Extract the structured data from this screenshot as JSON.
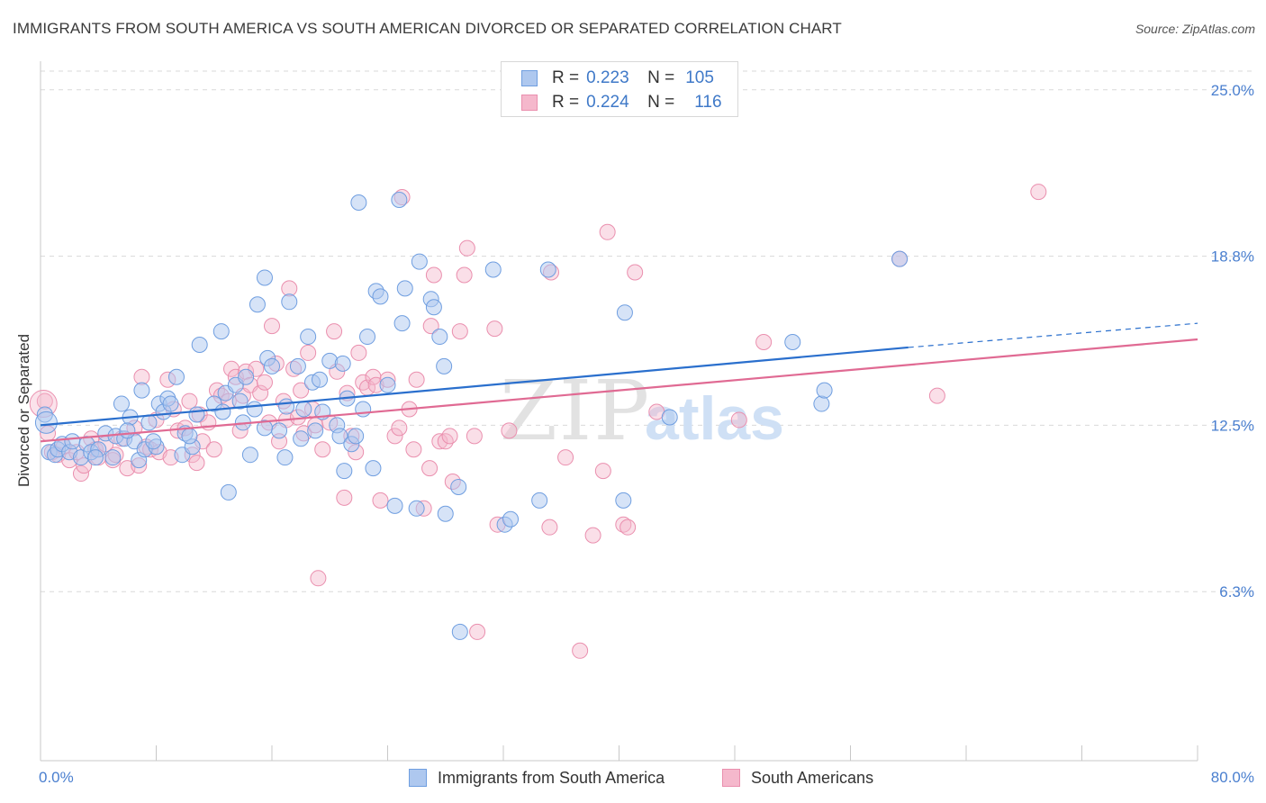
{
  "title": "IMMIGRANTS FROM SOUTH AMERICA VS SOUTH AMERICAN DIVORCED OR SEPARATED CORRELATION CHART",
  "source": "Source: ZipAtlas.com",
  "watermark": {
    "zip": "ZIP",
    "atlas": "atlas"
  },
  "legend_top": [
    {
      "r_label": "R =",
      "r_value": "0.223",
      "n_label": "N =",
      "n_value": "105"
    },
    {
      "r_label": "R =",
      "r_value": "0.224",
      "n_label": "N =",
      "n_value": "116"
    }
  ],
  "legend_bottom": [
    "Immigrants from South America",
    "South Americans"
  ],
  "colors": {
    "blue_fill": "#aec8ef",
    "blue_stroke": "#6f9ee0",
    "blue_line": "#2a6fcd",
    "pink_fill": "#f5b8cc",
    "pink_stroke": "#ea8fae",
    "pink_line": "#e06a93",
    "axis_label": "#4a7fcf",
    "grid": "#d9d9d9"
  },
  "chart_data": {
    "type": "scatter",
    "title": "IMMIGRANTS FROM SOUTH AMERICA VS SOUTH AMERICAN DIVORCED OR SEPARATED CORRELATION CHART",
    "xlabel": "",
    "ylabel": "Divorced or Separated",
    "xlim": [
      0,
      80
    ],
    "ylim": [
      0,
      26
    ],
    "x_tick_labels": [
      "0.0%",
      "80.0%"
    ],
    "y_ticks": [
      6.3,
      12.5,
      18.8,
      25.0
    ],
    "y_tick_labels": [
      "6.3%",
      "12.5%",
      "18.8%",
      "25.0%"
    ],
    "grid": true,
    "legend_position": "top-center",
    "series": [
      {
        "name": "Immigrants from South America",
        "color": "#aec8ef",
        "trend": {
          "x0": 0,
          "y0": 12.5,
          "x1": 60,
          "y1": 15.4,
          "dash_x1": 80,
          "dash_y1": 16.3
        },
        "points": [
          [
            0.3,
            12.9
          ],
          [
            0.6,
            11.5
          ],
          [
            1.0,
            11.4
          ],
          [
            1.2,
            11.6
          ],
          [
            1.5,
            11.8
          ],
          [
            2.0,
            11.5
          ],
          [
            2.2,
            11.9
          ],
          [
            2.8,
            11.3
          ],
          [
            3.2,
            11.8
          ],
          [
            3.5,
            11.5
          ],
          [
            4.0,
            11.6
          ],
          [
            4.5,
            12.2
          ],
          [
            5.0,
            11.3
          ],
          [
            5.2,
            12.1
          ],
          [
            5.6,
            13.3
          ],
          [
            5.8,
            12.0
          ],
          [
            6.2,
            12.8
          ],
          [
            6.5,
            11.9
          ],
          [
            6.8,
            11.2
          ],
          [
            7.0,
            13.8
          ],
          [
            7.5,
            12.6
          ],
          [
            7.2,
            11.6
          ],
          [
            8.0,
            11.7
          ],
          [
            8.2,
            13.3
          ],
          [
            8.5,
            13.0
          ],
          [
            8.8,
            13.5
          ],
          [
            9.0,
            13.3
          ],
          [
            9.4,
            14.3
          ],
          [
            9.8,
            11.4
          ],
          [
            10.0,
            12.2
          ],
          [
            10.5,
            11.7
          ],
          [
            10.8,
            12.9
          ],
          [
            11.0,
            15.5
          ],
          [
            12.0,
            13.3
          ],
          [
            12.5,
            16.0
          ],
          [
            12.8,
            13.7
          ],
          [
            12.6,
            13.0
          ],
          [
            13.0,
            10.0
          ],
          [
            13.5,
            14.0
          ],
          [
            13.8,
            13.4
          ],
          [
            14.0,
            12.6
          ],
          [
            14.2,
            14.3
          ],
          [
            14.5,
            11.4
          ],
          [
            14.8,
            13.1
          ],
          [
            15.0,
            17.0
          ],
          [
            15.5,
            18.0
          ],
          [
            15.7,
            15.0
          ],
          [
            16.0,
            14.7
          ],
          [
            16.5,
            12.3
          ],
          [
            16.9,
            11.3
          ],
          [
            17.0,
            13.2
          ],
          [
            17.2,
            17.1
          ],
          [
            17.8,
            14.7
          ],
          [
            18.0,
            12.0
          ],
          [
            18.2,
            13.1
          ],
          [
            18.5,
            15.8
          ],
          [
            18.8,
            14.1
          ],
          [
            19.0,
            12.3
          ],
          [
            19.3,
            14.2
          ],
          [
            19.5,
            13.0
          ],
          [
            20.0,
            14.9
          ],
          [
            20.5,
            12.5
          ],
          [
            20.7,
            12.1
          ],
          [
            20.9,
            14.8
          ],
          [
            21.0,
            10.8
          ],
          [
            21.2,
            13.5
          ],
          [
            21.5,
            11.8
          ],
          [
            21.8,
            12.1
          ],
          [
            22.0,
            20.8
          ],
          [
            22.3,
            13.1
          ],
          [
            22.6,
            15.8
          ],
          [
            23.0,
            10.9
          ],
          [
            23.2,
            17.5
          ],
          [
            23.5,
            17.3
          ],
          [
            24.0,
            14.0
          ],
          [
            24.5,
            9.5
          ],
          [
            24.8,
            20.9
          ],
          [
            25.0,
            16.3
          ],
          [
            25.2,
            17.6
          ],
          [
            26.0,
            9.4
          ],
          [
            26.2,
            18.6
          ],
          [
            27.0,
            17.2
          ],
          [
            27.2,
            16.9
          ],
          [
            27.6,
            15.8
          ],
          [
            27.9,
            14.7
          ],
          [
            28.0,
            9.2
          ],
          [
            28.9,
            10.2
          ],
          [
            29.0,
            4.8
          ],
          [
            31.3,
            18.3
          ],
          [
            32.1,
            8.8
          ],
          [
            32.5,
            9.0
          ],
          [
            34.5,
            9.7
          ],
          [
            35.1,
            18.3
          ],
          [
            40.3,
            9.7
          ],
          [
            40.4,
            16.7
          ],
          [
            43.5,
            12.8
          ],
          [
            52.0,
            15.6
          ],
          [
            54.0,
            13.3
          ],
          [
            54.2,
            13.8
          ],
          [
            59.4,
            18.7
          ],
          [
            10.3,
            12.1
          ],
          [
            15.5,
            12.4
          ],
          [
            6.0,
            12.3
          ],
          [
            3.8,
            11.3
          ],
          [
            7.8,
            11.9
          ]
        ]
      },
      {
        "name": "South Americans",
        "color": "#f5b8cc",
        "trend": {
          "x0": 0,
          "y0": 11.9,
          "x1": 80,
          "y1": 15.7
        },
        "points": [
          [
            0.3,
            13.4
          ],
          [
            0.5,
            12.2
          ],
          [
            0.8,
            11.5
          ],
          [
            1.2,
            11.4
          ],
          [
            1.6,
            11.7
          ],
          [
            2.0,
            11.2
          ],
          [
            2.5,
            11.5
          ],
          [
            2.8,
            10.7
          ],
          [
            3.0,
            11.0
          ],
          [
            3.5,
            12.0
          ],
          [
            3.8,
            11.6
          ],
          [
            4.0,
            11.3
          ],
          [
            4.5,
            11.8
          ],
          [
            5.0,
            11.2
          ],
          [
            5.2,
            11.4
          ],
          [
            5.6,
            12.0
          ],
          [
            6.0,
            10.9
          ],
          [
            6.5,
            12.4
          ],
          [
            6.8,
            11.0
          ],
          [
            7.0,
            14.3
          ],
          [
            7.3,
            11.7
          ],
          [
            7.6,
            11.6
          ],
          [
            8.0,
            12.7
          ],
          [
            8.2,
            11.5
          ],
          [
            8.8,
            14.2
          ],
          [
            9.0,
            11.3
          ],
          [
            9.2,
            13.1
          ],
          [
            9.5,
            12.3
          ],
          [
            10.0,
            12.4
          ],
          [
            10.3,
            13.4
          ],
          [
            10.5,
            11.4
          ],
          [
            10.8,
            11.1
          ],
          [
            11.0,
            12.9
          ],
          [
            11.2,
            11.9
          ],
          [
            11.6,
            12.6
          ],
          [
            12.0,
            11.6
          ],
          [
            12.2,
            13.8
          ],
          [
            12.5,
            13.6
          ],
          [
            13.0,
            13.4
          ],
          [
            13.2,
            14.6
          ],
          [
            13.5,
            14.3
          ],
          [
            13.8,
            12.3
          ],
          [
            14.0,
            13.6
          ],
          [
            14.2,
            14.5
          ],
          [
            14.5,
            14.0
          ],
          [
            14.9,
            14.6
          ],
          [
            15.2,
            13.7
          ],
          [
            15.5,
            14.1
          ],
          [
            15.8,
            12.6
          ],
          [
            16.0,
            16.2
          ],
          [
            16.3,
            14.8
          ],
          [
            16.5,
            11.9
          ],
          [
            16.8,
            13.4
          ],
          [
            17.0,
            12.7
          ],
          [
            17.2,
            17.6
          ],
          [
            17.5,
            14.6
          ],
          [
            17.8,
            12.8
          ],
          [
            18.0,
            13.8
          ],
          [
            18.2,
            12.2
          ],
          [
            18.5,
            15.2
          ],
          [
            18.8,
            13.1
          ],
          [
            19.0,
            12.5
          ],
          [
            19.2,
            6.8
          ],
          [
            19.5,
            11.6
          ],
          [
            20.0,
            12.6
          ],
          [
            20.3,
            16.0
          ],
          [
            20.5,
            14.5
          ],
          [
            21.0,
            9.8
          ],
          [
            21.2,
            13.7
          ],
          [
            21.5,
            12.1
          ],
          [
            21.8,
            11.5
          ],
          [
            22.0,
            15.2
          ],
          [
            22.3,
            14.1
          ],
          [
            22.6,
            13.9
          ],
          [
            23.0,
            14.3
          ],
          [
            23.2,
            14.0
          ],
          [
            23.5,
            9.7
          ],
          [
            24.0,
            14.2
          ],
          [
            24.5,
            12.1
          ],
          [
            24.8,
            12.4
          ],
          [
            25.0,
            21.0
          ],
          [
            25.5,
            13.1
          ],
          [
            25.8,
            11.6
          ],
          [
            26.0,
            14.2
          ],
          [
            26.5,
            9.4
          ],
          [
            26.9,
            10.9
          ],
          [
            27.0,
            16.2
          ],
          [
            27.2,
            18.1
          ],
          [
            27.6,
            11.9
          ],
          [
            28.0,
            11.9
          ],
          [
            28.3,
            12.1
          ],
          [
            28.5,
            10.4
          ],
          [
            29.0,
            16.0
          ],
          [
            29.3,
            18.1
          ],
          [
            29.5,
            19.1
          ],
          [
            30.0,
            12.1
          ],
          [
            30.2,
            4.8
          ],
          [
            31.4,
            16.1
          ],
          [
            31.6,
            8.8
          ],
          [
            32.4,
            12.3
          ],
          [
            35.2,
            8.7
          ],
          [
            35.3,
            18.2
          ],
          [
            36.3,
            11.3
          ],
          [
            37.3,
            4.1
          ],
          [
            38.2,
            8.4
          ],
          [
            38.9,
            10.8
          ],
          [
            39.2,
            19.7
          ],
          [
            40.3,
            8.8
          ],
          [
            40.6,
            8.7
          ],
          [
            41.1,
            18.2
          ],
          [
            42.6,
            13.0
          ],
          [
            48.3,
            12.7
          ],
          [
            50.0,
            15.6
          ],
          [
            59.4,
            18.7
          ],
          [
            62.0,
            13.6
          ],
          [
            69.0,
            21.2
          ]
        ]
      }
    ]
  }
}
